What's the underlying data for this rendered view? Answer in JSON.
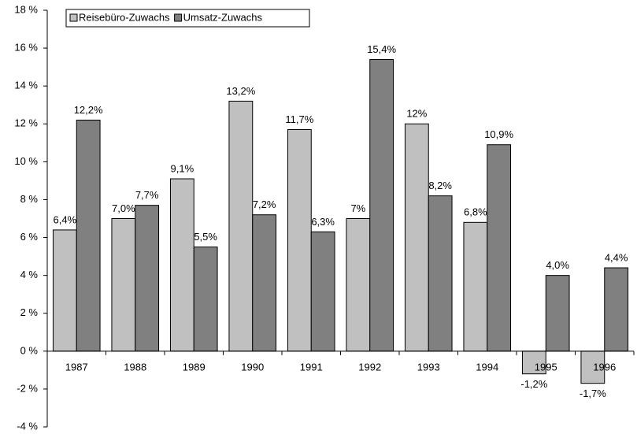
{
  "chart_data": {
    "type": "bar",
    "categories": [
      "1987",
      "1988",
      "1989",
      "1990",
      "1991",
      "1992",
      "1993",
      "1994",
      "1995",
      "1996"
    ],
    "series": [
      {
        "name": "Reisebüro-Zuwachs",
        "color": "#c0c0c0",
        "values": [
          6.4,
          7.0,
          9.1,
          13.2,
          11.7,
          7,
          12,
          6.8,
          -1.2,
          -1.7
        ],
        "value_labels": [
          "6,4%",
          "7,0%",
          "9,1%",
          "13,2%",
          "11,7%",
          "7%",
          "12%",
          "6,8%",
          "-1,2%",
          "-1,7%"
        ]
      },
      {
        "name": "Umsatz-Zuwachs",
        "color": "#808080",
        "values": [
          12.2,
          7.7,
          5.5,
          7.2,
          6.3,
          15.4,
          8.2,
          10.9,
          4.0,
          4.4
        ],
        "value_labels": [
          "12,2%",
          "7,7%",
          "5,5%",
          "7,2%",
          "6,3%",
          "15,4%",
          "8,2%",
          "10,9%",
          "4,0%",
          "4,4%"
        ]
      }
    ],
    "ylim": [
      -4,
      18
    ],
    "yticks": [
      {
        "value": -4,
        "label": "-4 %"
      },
      {
        "value": -2,
        "label": "-2 %"
      },
      {
        "value": 0,
        "label": "0 %"
      },
      {
        "value": 2,
        "label": "2 %"
      },
      {
        "value": 4,
        "label": "4 %"
      },
      {
        "value": 6,
        "label": "6 %"
      },
      {
        "value": 8,
        "label": "8 %"
      },
      {
        "value": 10,
        "label": "10 %"
      },
      {
        "value": 12,
        "label": "12 %"
      },
      {
        "value": 14,
        "label": "14 %"
      },
      {
        "value": 16,
        "label": "16 %"
      },
      {
        "value": 18,
        "label": "18 %"
      }
    ],
    "legend": "top-left"
  }
}
